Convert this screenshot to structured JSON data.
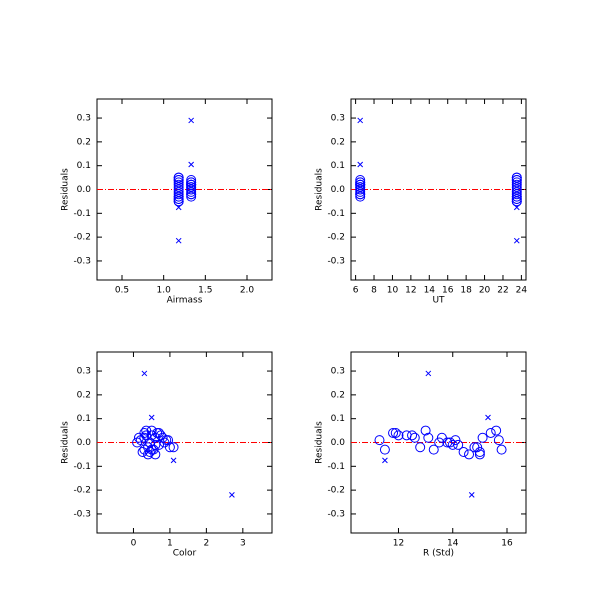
{
  "chart_data": [
    {
      "type": "scatter",
      "xlabel": "Airmass",
      "ylabel": "Residuals",
      "xlim": [
        0.2,
        2.3
      ],
      "ylim": [
        -0.38,
        0.38
      ],
      "xticks": [
        0.5,
        {
          "value": 1,
          "label": "1.0"
        },
        1.5,
        {
          "value": 2,
          "label": "2.0"
        }
      ],
      "yticks": [
        -0.3,
        -0.2,
        -0.1,
        {
          "value": 0,
          "label": "0.0"
        },
        0.1,
        0.2,
        0.3
      ],
      "hline": {
        "value": 0,
        "color": "#ff0000"
      },
      "series": [
        {
          "marker": "o",
          "color": "#0000ff",
          "x": [
            1.18,
            1.33,
            1.18,
            1.33,
            1.18,
            1.33,
            1.18,
            1.33,
            1.33,
            1.18,
            1.33,
            1.18,
            1.18,
            1.33,
            1.18,
            1.18,
            1.33,
            1.18,
            1.18,
            1.33,
            1.18,
            1.18,
            1.33,
            1.18,
            1.33,
            1.33,
            1.18,
            1.33,
            1.18,
            1.33
          ],
          "values": [
            0.04,
            0.03,
            0.05,
            0.02,
            0.01,
            0.0,
            -0.01,
            -0.02,
            -0.03,
            -0.04,
            0.02,
            0.04,
            -0.02,
            0.0,
            0.03,
            -0.05,
            0.01,
            -0.03,
            0.05,
            -0.01,
            0.02,
            -0.04,
            0.03,
            0.0,
            -0.02,
            0.04,
            -0.03,
            0.01,
            -0.05,
            0.02
          ]
        },
        {
          "marker": "x",
          "color": "#0000ff",
          "x": [
            1.33,
            1.33,
            1.18,
            1.18
          ],
          "values": [
            0.29,
            0.105,
            -0.215,
            -0.075
          ]
        }
      ]
    },
    {
      "type": "scatter",
      "xlabel": "UT",
      "ylabel": "Residuals",
      "xlim": [
        5.5,
        24.5
      ],
      "ylim": [
        -0.38,
        0.38
      ],
      "xticks": [
        6,
        8,
        10,
        12,
        14,
        16,
        18,
        20,
        22,
        24
      ],
      "yticks": [
        -0.3,
        -0.2,
        -0.1,
        {
          "value": 0,
          "label": "0.0"
        },
        0.1,
        0.2,
        0.3
      ],
      "hline": {
        "value": 0,
        "color": "#ff0000"
      },
      "series": [
        {
          "marker": "o",
          "color": "#0000ff",
          "x": [
            23.5,
            6.5,
            23.5,
            6.5,
            23.5,
            6.5,
            23.5,
            6.5,
            6.5,
            23.5,
            6.5,
            23.5,
            23.5,
            6.5,
            23.5,
            23.5,
            6.5,
            23.5,
            23.5,
            6.5,
            23.5,
            23.5,
            6.5,
            23.5,
            6.5,
            6.5,
            23.5,
            6.5,
            23.5,
            6.5
          ],
          "values": [
            0.04,
            0.03,
            0.05,
            0.02,
            0.01,
            0.0,
            -0.01,
            -0.02,
            -0.03,
            -0.04,
            0.02,
            0.04,
            -0.02,
            0.0,
            0.03,
            -0.05,
            0.01,
            -0.03,
            0.05,
            -0.01,
            0.02,
            -0.04,
            0.03,
            0.0,
            -0.02,
            0.04,
            -0.03,
            0.01,
            -0.05,
            0.02
          ]
        },
        {
          "marker": "x",
          "color": "#0000ff",
          "x": [
            6.5,
            6.5,
            23.5,
            23.5
          ],
          "values": [
            0.29,
            0.105,
            -0.215,
            -0.075
          ]
        }
      ]
    },
    {
      "type": "scatter",
      "xlabel": "Color",
      "ylabel": "Residuals",
      "xlim": [
        -1,
        3.8
      ],
      "ylim": [
        -0.38,
        0.38
      ],
      "xticks": [
        0,
        1,
        2,
        3
      ],
      "yticks": [
        -0.3,
        -0.2,
        -0.1,
        {
          "value": 0,
          "label": "0.0"
        },
        0.1,
        0.2,
        0.3
      ],
      "hline": {
        "value": 0,
        "color": "#ff0000"
      },
      "series": [
        {
          "marker": "o",
          "color": "#0000ff",
          "x": [
            0.3,
            0.5,
            0.35,
            0.6,
            0.2,
            0.45,
            0.7,
            0.4,
            0.55,
            0.25,
            0.8,
            0.65,
            1.0,
            0.1,
            0.75,
            0.4,
            0.9,
            0.3,
            0.5,
            0.6,
            0.15,
            0.45,
            0.35,
            0.85,
            1.1,
            0.7,
            0.5,
            0.95,
            0.6,
            0.3
          ],
          "values": [
            0.04,
            0.03,
            0.05,
            0.02,
            0.01,
            0.0,
            -0.01,
            -0.02,
            -0.03,
            -0.04,
            0.02,
            0.04,
            -0.02,
            0.0,
            0.03,
            -0.05,
            0.01,
            -0.03,
            0.05,
            -0.01,
            0.02,
            -0.04,
            0.03,
            0.0,
            -0.02,
            0.04,
            -0.03,
            0.01,
            -0.05,
            0.02
          ]
        },
        {
          "marker": "x",
          "color": "#0000ff",
          "x": [
            0.3,
            0.5,
            2.7,
            1.1
          ],
          "values": [
            0.29,
            0.105,
            -0.22,
            -0.075
          ]
        }
      ]
    },
    {
      "type": "scatter",
      "xlabel": "R (Std)",
      "ylabel": "Residuals",
      "xlim": [
        10.25,
        16.7
      ],
      "ylim": [
        -0.38,
        0.38
      ],
      "xticks": [
        12,
        14,
        16
      ],
      "yticks": [
        -0.3,
        -0.2,
        -0.1,
        {
          "value": 0,
          "label": "0.0"
        },
        0.1,
        0.2,
        0.3
      ],
      "hline": {
        "value": 0,
        "color": "#ff0000"
      },
      "series": [
        {
          "marker": "o",
          "color": "#0000ff",
          "x": [
            11.9,
            12.3,
            13.0,
            12.6,
            11.3,
            13.5,
            14.0,
            12.8,
            13.3,
            14.4,
            15.1,
            15.4,
            14.8,
            13.8,
            12.0,
            14.6,
            15.7,
            11.5,
            15.6,
            14.2,
            13.1,
            15.0,
            12.5,
            13.9,
            14.9,
            11.8,
            15.8,
            14.1,
            15.0,
            13.6
          ],
          "values": [
            0.04,
            0.03,
            0.05,
            0.02,
            0.01,
            0.0,
            -0.01,
            -0.02,
            -0.03,
            -0.04,
            0.02,
            0.04,
            -0.02,
            0.0,
            0.03,
            -0.05,
            0.01,
            -0.03,
            0.05,
            -0.01,
            0.02,
            -0.04,
            0.03,
            0.0,
            -0.02,
            0.04,
            -0.03,
            0.01,
            -0.05,
            0.02
          ]
        },
        {
          "marker": "x",
          "color": "#0000ff",
          "x": [
            13.1,
            15.3,
            14.7,
            11.5
          ],
          "values": [
            0.29,
            0.105,
            -0.22,
            -0.075
          ]
        }
      ]
    }
  ]
}
